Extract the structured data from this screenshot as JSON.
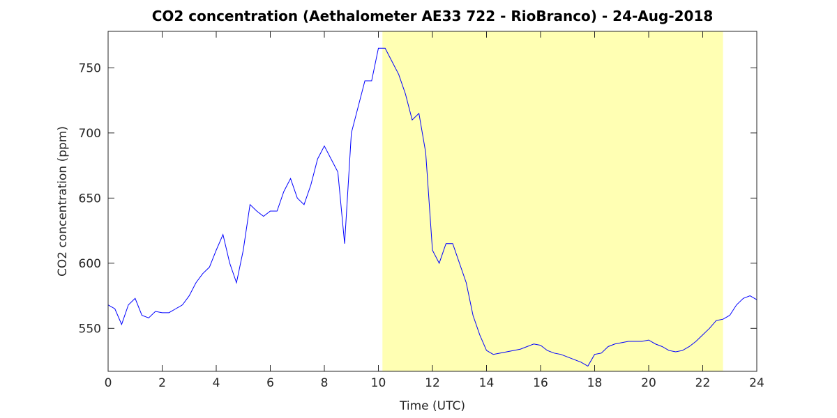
{
  "chart_data": {
    "type": "line",
    "title": "CO2 concentration (Aethalometer AE33 722 - RioBranco) - 24-Aug-2018",
    "x_label": "Time (UTC)",
    "y_label": "CO2 concentration (ppm)",
    "x": [
      0,
      0.25,
      0.5,
      0.75,
      1,
      1.25,
      1.5,
      1.75,
      2,
      2.25,
      2.5,
      2.75,
      3,
      3.25,
      3.5,
      3.75,
      4,
      4.25,
      4.5,
      4.75,
      5,
      5.25,
      5.5,
      5.75,
      6,
      6.25,
      6.5,
      6.75,
      7,
      7.25,
      7.5,
      7.75,
      8,
      8.25,
      8.5,
      8.75,
      9,
      9.25,
      9.5,
      9.75,
      10,
      10.25,
      10.5,
      10.75,
      11,
      11.25,
      11.5,
      11.75,
      12,
      12.25,
      12.5,
      12.75,
      13,
      13.25,
      13.5,
      13.75,
      14,
      14.25,
      14.5,
      14.75,
      15,
      15.25,
      15.5,
      15.75,
      16,
      16.25,
      16.5,
      16.75,
      17,
      17.25,
      17.5,
      17.75,
      18,
      18.25,
      18.5,
      18.75,
      19,
      19.25,
      19.5,
      19.75,
      20,
      20.25,
      20.5,
      20.75,
      21,
      21.25,
      21.5,
      21.75,
      22,
      22.25,
      22.5,
      22.75,
      23,
      23.25,
      23.5,
      23.75,
      24
    ],
    "series": [
      {
        "name": "CO2",
        "color": "#0000ff",
        "values": [
          568,
          565,
          553,
          568,
          573,
          560,
          558,
          563,
          562,
          562,
          565,
          568,
          575,
          585,
          592,
          597,
          610,
          622,
          600,
          585,
          610,
          645,
          640,
          636,
          640,
          640,
          655,
          665,
          650,
          645,
          660,
          680,
          690,
          680,
          670,
          615,
          700,
          720,
          740,
          740,
          765,
          765,
          755,
          745,
          730,
          710,
          715,
          685,
          610,
          600,
          615,
          615,
          600,
          585,
          560,
          545,
          533,
          530,
          531,
          532,
          533,
          534,
          536,
          538,
          537,
          533,
          531,
          530,
          528,
          526,
          524,
          521,
          530,
          531,
          536,
          538,
          539,
          540,
          540,
          540,
          541,
          538,
          536,
          533,
          532,
          533,
          536,
          540,
          545,
          550,
          556,
          557,
          560,
          568,
          573,
          575,
          572
        ]
      }
    ],
    "xlim": [
      0,
      24
    ],
    "xticks": [
      0,
      2,
      4,
      6,
      8,
      10,
      12,
      14,
      16,
      18,
      20,
      22,
      24
    ],
    "ylim": [
      517,
      778
    ],
    "yticks": [
      550,
      600,
      650,
      700,
      750
    ],
    "shaded_x": [
      10.15,
      22.75
    ],
    "shade_color": "#ffffb3"
  }
}
